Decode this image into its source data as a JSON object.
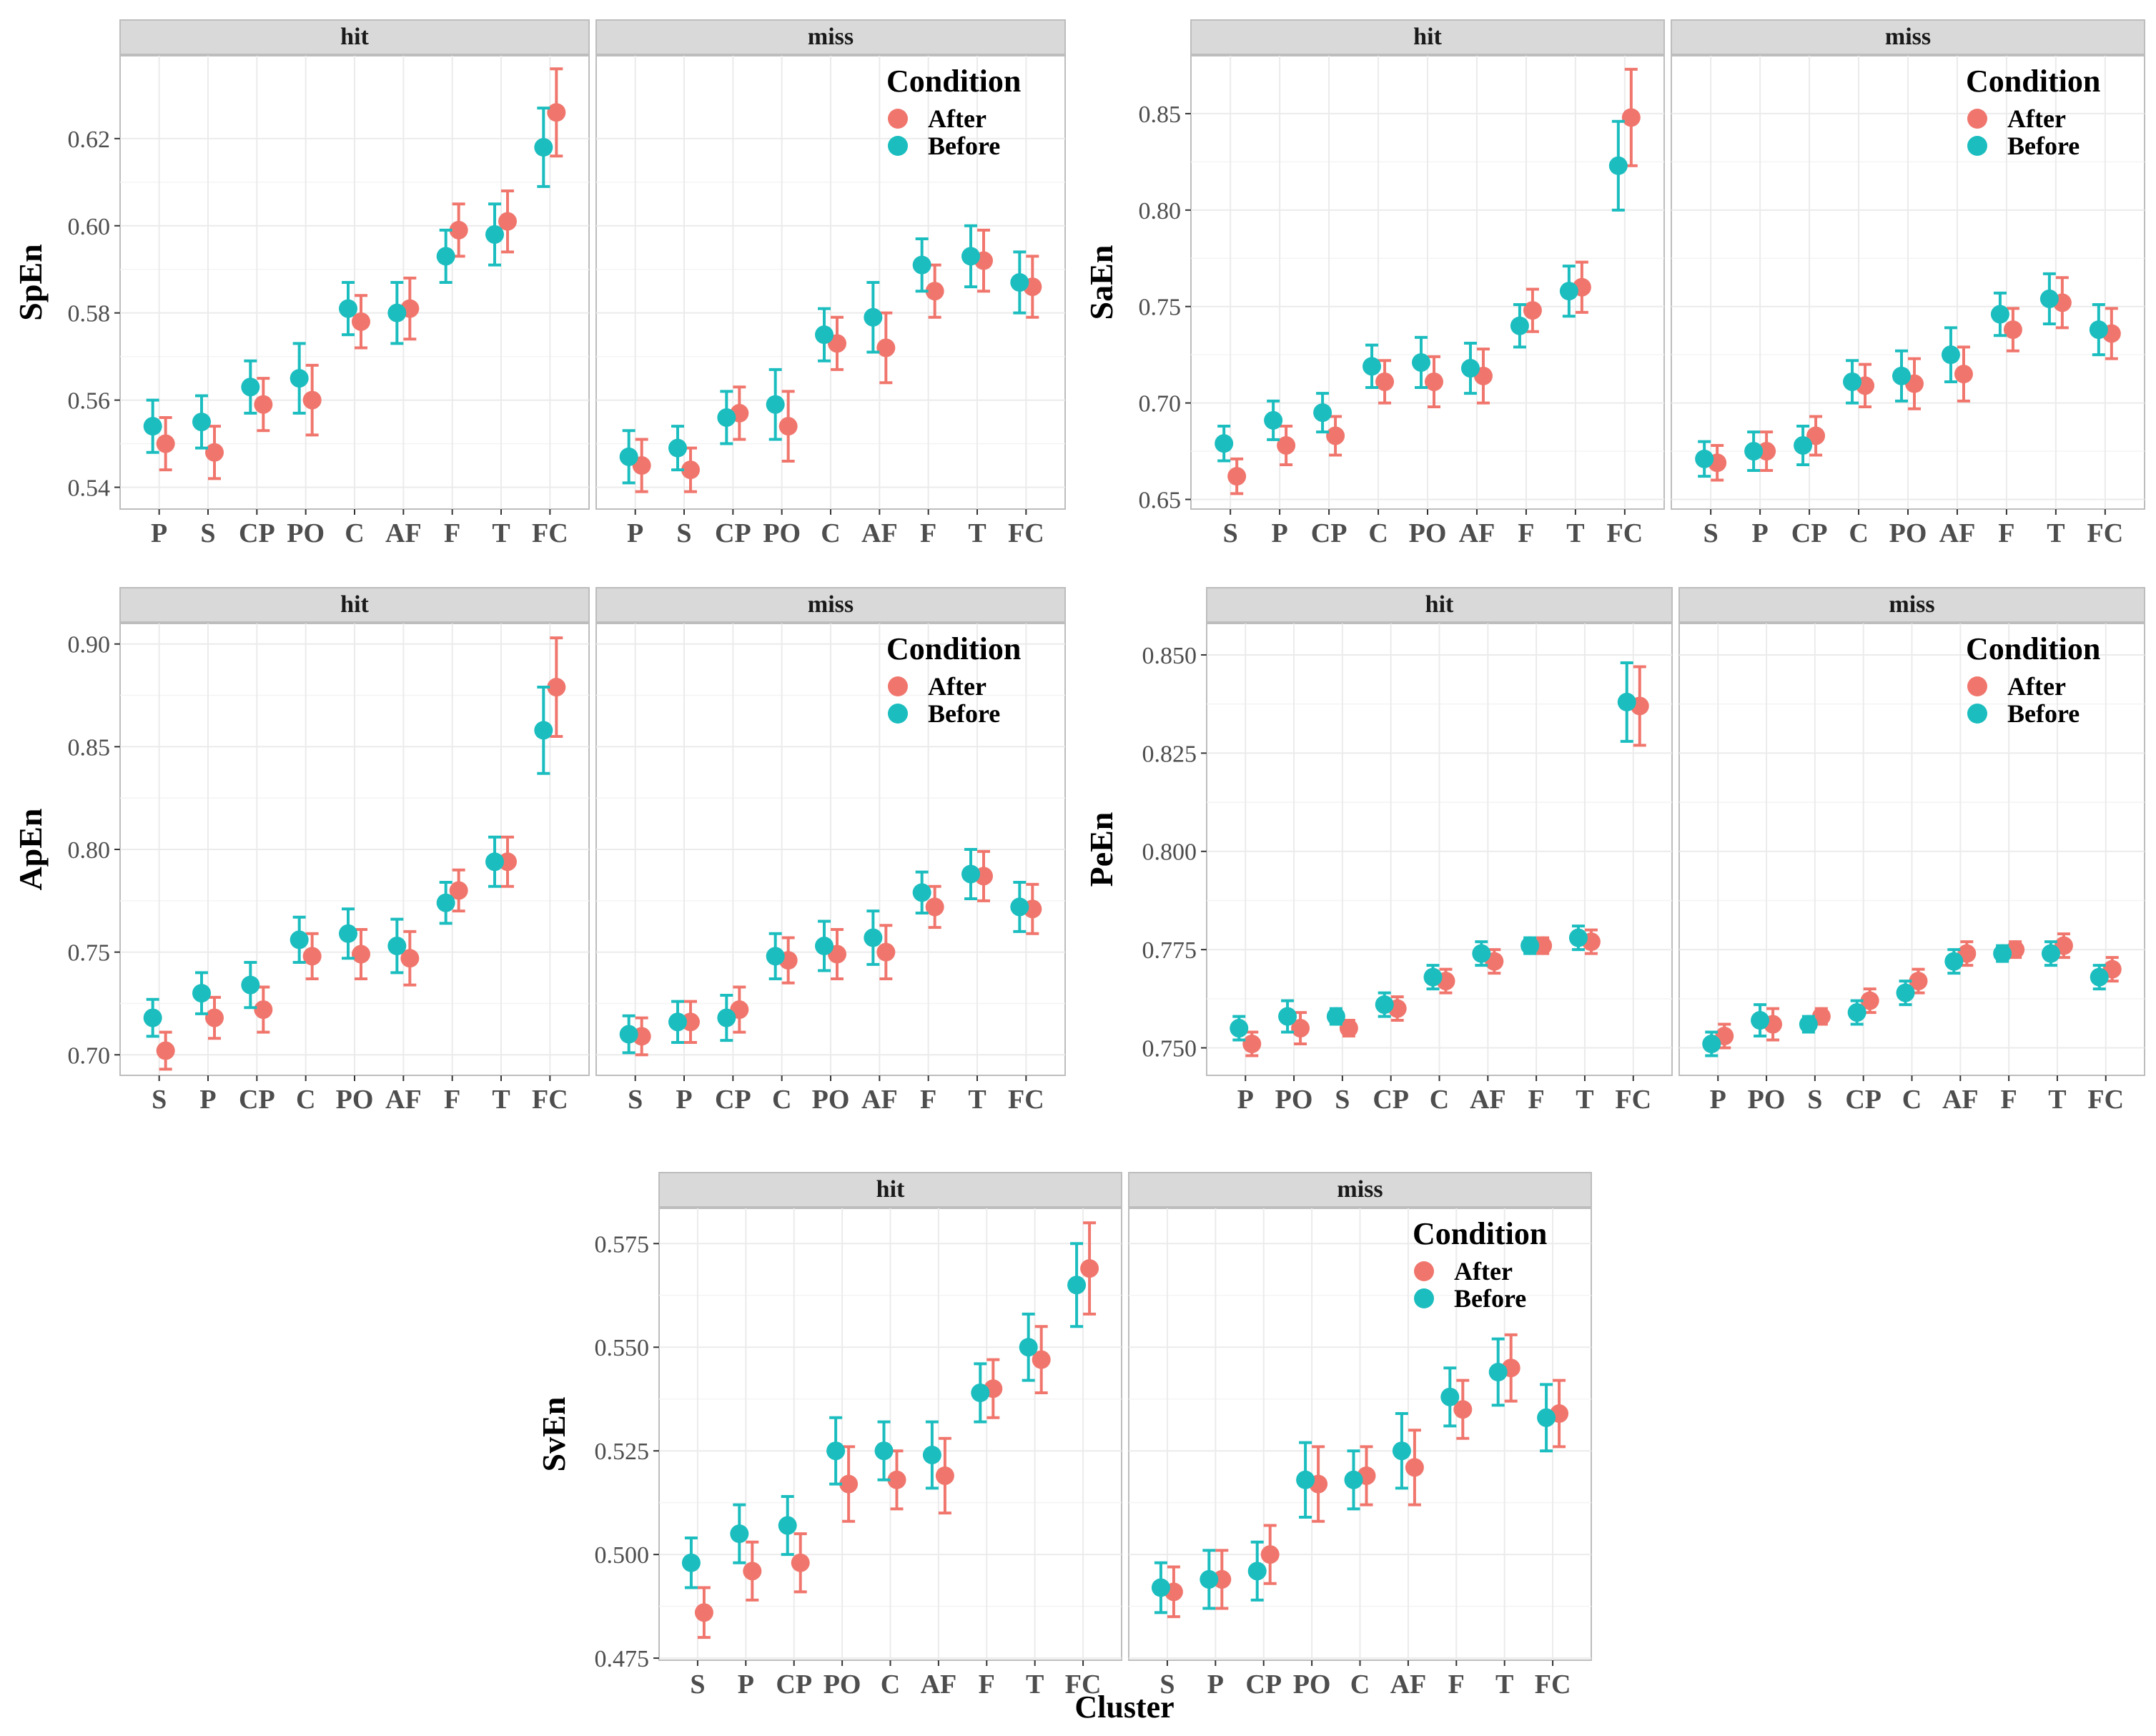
{
  "xlabel": "Cluster",
  "colors": {
    "after": "#F0766D",
    "before": "#1BBDBF",
    "strip": "#D9D9D9",
    "grid": "#EBEBEB",
    "axis_text": "#4D4D4D"
  },
  "chart_data": [
    {
      "type": "scatter",
      "ylabel": "SpEn",
      "yticks": [
        0.54,
        0.56,
        0.58,
        0.6,
        0.62
      ],
      "ylim": [
        0.535,
        0.639
      ],
      "legend": {
        "title": "Condition",
        "entries": [
          "After",
          "Before"
        ],
        "placement": "top-right"
      },
      "facets": [
        {
          "strip": "hit",
          "categories": [
            "P",
            "S",
            "CP",
            "PO",
            "C",
            "AF",
            "F",
            "T",
            "FC"
          ],
          "series": [
            {
              "name": "After",
              "values": [
                0.55,
                0.548,
                0.559,
                0.56,
                0.578,
                0.581,
                0.599,
                0.601,
                0.626
              ],
              "errors": [
                0.006,
                0.006,
                0.006,
                0.008,
                0.006,
                0.007,
                0.006,
                0.007,
                0.01
              ]
            },
            {
              "name": "Before",
              "values": [
                0.554,
                0.555,
                0.563,
                0.565,
                0.581,
                0.58,
                0.593,
                0.598,
                0.618
              ],
              "errors": [
                0.006,
                0.006,
                0.006,
                0.008,
                0.006,
                0.007,
                0.006,
                0.007,
                0.009
              ]
            }
          ]
        },
        {
          "strip": "miss",
          "categories": [
            "P",
            "S",
            "CP",
            "PO",
            "C",
            "AF",
            "F",
            "T",
            "FC"
          ],
          "series": [
            {
              "name": "After",
              "values": [
                0.545,
                0.544,
                0.557,
                0.554,
                0.573,
                0.572,
                0.585,
                0.592,
                0.586
              ],
              "errors": [
                0.006,
                0.005,
                0.006,
                0.008,
                0.006,
                0.008,
                0.006,
                0.007,
                0.007
              ]
            },
            {
              "name": "Before",
              "values": [
                0.547,
                0.549,
                0.556,
                0.559,
                0.575,
                0.579,
                0.591,
                0.593,
                0.587
              ],
              "errors": [
                0.006,
                0.005,
                0.006,
                0.008,
                0.006,
                0.008,
                0.006,
                0.007,
                0.007
              ]
            }
          ]
        }
      ]
    },
    {
      "type": "scatter",
      "ylabel": "SaEn",
      "yticks": [
        0.65,
        0.7,
        0.75,
        0.8,
        0.85
      ],
      "ylim": [
        0.645,
        0.88
      ],
      "legend": {
        "title": "Condition",
        "entries": [
          "After",
          "Before"
        ],
        "placement": "top-right"
      },
      "facets": [
        {
          "strip": "hit",
          "categories": [
            "S",
            "P",
            "CP",
            "C",
            "PO",
            "AF",
            "F",
            "T",
            "FC"
          ],
          "series": [
            {
              "name": "After",
              "values": [
                0.662,
                0.678,
                0.683,
                0.711,
                0.711,
                0.714,
                0.748,
                0.76,
                0.848
              ],
              "errors": [
                0.009,
                0.01,
                0.01,
                0.011,
                0.013,
                0.014,
                0.011,
                0.013,
                0.025
              ]
            },
            {
              "name": "Before",
              "values": [
                0.679,
                0.691,
                0.695,
                0.719,
                0.721,
                0.718,
                0.74,
                0.758,
                0.823
              ],
              "errors": [
                0.009,
                0.01,
                0.01,
                0.011,
                0.013,
                0.013,
                0.011,
                0.013,
                0.023
              ]
            }
          ]
        },
        {
          "strip": "miss",
          "categories": [
            "S",
            "P",
            "CP",
            "C",
            "PO",
            "AF",
            "F",
            "T",
            "FC"
          ],
          "series": [
            {
              "name": "After",
              "values": [
                0.669,
                0.675,
                0.683,
                0.709,
                0.71,
                0.715,
                0.738,
                0.752,
                0.736
              ],
              "errors": [
                0.009,
                0.01,
                0.01,
                0.011,
                0.013,
                0.014,
                0.011,
                0.013,
                0.013
              ]
            },
            {
              "name": "Before",
              "values": [
                0.671,
                0.675,
                0.678,
                0.711,
                0.714,
                0.725,
                0.746,
                0.754,
                0.738
              ],
              "errors": [
                0.009,
                0.01,
                0.01,
                0.011,
                0.013,
                0.014,
                0.011,
                0.013,
                0.013
              ]
            }
          ]
        }
      ]
    },
    {
      "type": "scatter",
      "ylabel": "ApEn",
      "yticks": [
        0.7,
        0.75,
        0.8,
        0.85,
        0.9
      ],
      "ylim": [
        0.69,
        0.91
      ],
      "legend": {
        "title": "Condition",
        "entries": [
          "After",
          "Before"
        ],
        "placement": "top-right"
      },
      "facets": [
        {
          "strip": "hit",
          "categories": [
            "S",
            "P",
            "CP",
            "C",
            "PO",
            "AF",
            "F",
            "T",
            "FC"
          ],
          "series": [
            {
              "name": "After",
              "values": [
                0.702,
                0.718,
                0.722,
                0.748,
                0.749,
                0.747,
                0.78,
                0.794,
                0.879
              ],
              "errors": [
                0.009,
                0.01,
                0.011,
                0.011,
                0.012,
                0.013,
                0.01,
                0.012,
                0.024
              ]
            },
            {
              "name": "Before",
              "values": [
                0.718,
                0.73,
                0.734,
                0.756,
                0.759,
                0.753,
                0.774,
                0.794,
                0.858
              ],
              "errors": [
                0.009,
                0.01,
                0.011,
                0.011,
                0.012,
                0.013,
                0.01,
                0.012,
                0.021
              ]
            }
          ]
        },
        {
          "strip": "miss",
          "categories": [
            "S",
            "P",
            "CP",
            "C",
            "PO",
            "AF",
            "F",
            "T",
            "FC"
          ],
          "series": [
            {
              "name": "After",
              "values": [
                0.709,
                0.716,
                0.722,
                0.746,
                0.749,
                0.75,
                0.772,
                0.787,
                0.771
              ],
              "errors": [
                0.009,
                0.01,
                0.011,
                0.011,
                0.012,
                0.013,
                0.01,
                0.012,
                0.012
              ]
            },
            {
              "name": "Before",
              "values": [
                0.71,
                0.716,
                0.718,
                0.748,
                0.753,
                0.757,
                0.779,
                0.788,
                0.772
              ],
              "errors": [
                0.009,
                0.01,
                0.011,
                0.011,
                0.012,
                0.013,
                0.01,
                0.012,
                0.012
              ]
            }
          ]
        }
      ]
    },
    {
      "type": "scatter",
      "ylabel": "PeEn",
      "yticks": [
        "0.750",
        "0.775",
        "0.800",
        "0.825",
        "0.850"
      ],
      "ylim": [
        0.743,
        0.858
      ],
      "legend": {
        "title": "Condition",
        "entries": [
          "After",
          "Before"
        ],
        "placement": "top-right"
      },
      "facets": [
        {
          "strip": "hit",
          "categories": [
            "P",
            "PO",
            "S",
            "CP",
            "C",
            "AF",
            "F",
            "T",
            "FC"
          ],
          "series": [
            {
              "name": "After",
              "values": [
                0.751,
                0.755,
                0.755,
                0.76,
                0.767,
                0.772,
                0.776,
                0.777,
                0.837
              ],
              "errors": [
                0.003,
                0.004,
                0.002,
                0.003,
                0.003,
                0.003,
                0.002,
                0.003,
                0.01
              ]
            },
            {
              "name": "Before",
              "values": [
                0.755,
                0.758,
                0.758,
                0.761,
                0.768,
                0.774,
                0.776,
                0.778,
                0.838
              ],
              "errors": [
                0.003,
                0.004,
                0.002,
                0.003,
                0.003,
                0.003,
                0.002,
                0.003,
                0.01
              ]
            }
          ]
        },
        {
          "strip": "miss",
          "categories": [
            "P",
            "PO",
            "S",
            "CP",
            "C",
            "AF",
            "F",
            "T",
            "FC"
          ],
          "series": [
            {
              "name": "After",
              "values": [
                0.753,
                0.756,
                0.758,
                0.762,
                0.767,
                0.774,
                0.775,
                0.776,
                0.77
              ],
              "errors": [
                0.003,
                0.004,
                0.002,
                0.003,
                0.003,
                0.003,
                0.002,
                0.003,
                0.003
              ]
            },
            {
              "name": "Before",
              "values": [
                0.751,
                0.757,
                0.756,
                0.759,
                0.764,
                0.772,
                0.774,
                0.774,
                0.768
              ],
              "errors": [
                0.003,
                0.004,
                0.002,
                0.003,
                0.003,
                0.003,
                0.002,
                0.003,
                0.003
              ]
            }
          ]
        }
      ]
    },
    {
      "type": "scatter",
      "ylabel": "SvEn",
      "yticks": [
        "0.475",
        "0.500",
        "0.525",
        "0.550",
        "0.575"
      ],
      "ylim": [
        0.4745,
        0.5835
      ],
      "legend": {
        "title": "Condition",
        "entries": [
          "After",
          "Before"
        ],
        "placement": "top-right"
      },
      "facets": [
        {
          "strip": "hit",
          "categories": [
            "S",
            "P",
            "CP",
            "PO",
            "C",
            "AF",
            "F",
            "T",
            "FC"
          ],
          "series": [
            {
              "name": "After",
              "values": [
                0.486,
                0.496,
                0.498,
                0.517,
                0.518,
                0.519,
                0.54,
                0.547,
                0.569
              ],
              "errors": [
                0.006,
                0.007,
                0.007,
                0.009,
                0.007,
                0.009,
                0.007,
                0.008,
                0.011
              ]
            },
            {
              "name": "Before",
              "values": [
                0.498,
                0.505,
                0.507,
                0.525,
                0.525,
                0.524,
                0.539,
                0.55,
                0.565
              ],
              "errors": [
                0.006,
                0.007,
                0.007,
                0.008,
                0.007,
                0.008,
                0.007,
                0.008,
                0.01
              ]
            }
          ]
        },
        {
          "strip": "miss",
          "categories": [
            "S",
            "P",
            "CP",
            "PO",
            "C",
            "AF",
            "F",
            "T",
            "FC"
          ],
          "series": [
            {
              "name": "After",
              "values": [
                0.491,
                0.494,
                0.5,
                0.517,
                0.519,
                0.521,
                0.535,
                0.545,
                0.534
              ],
              "errors": [
                0.006,
                0.007,
                0.007,
                0.009,
                0.007,
                0.009,
                0.007,
                0.008,
                0.008
              ]
            },
            {
              "name": "Before",
              "values": [
                0.492,
                0.494,
                0.496,
                0.518,
                0.518,
                0.525,
                0.538,
                0.544,
                0.533
              ],
              "errors": [
                0.006,
                0.007,
                0.007,
                0.009,
                0.007,
                0.009,
                0.007,
                0.008,
                0.008
              ]
            }
          ]
        }
      ]
    }
  ]
}
